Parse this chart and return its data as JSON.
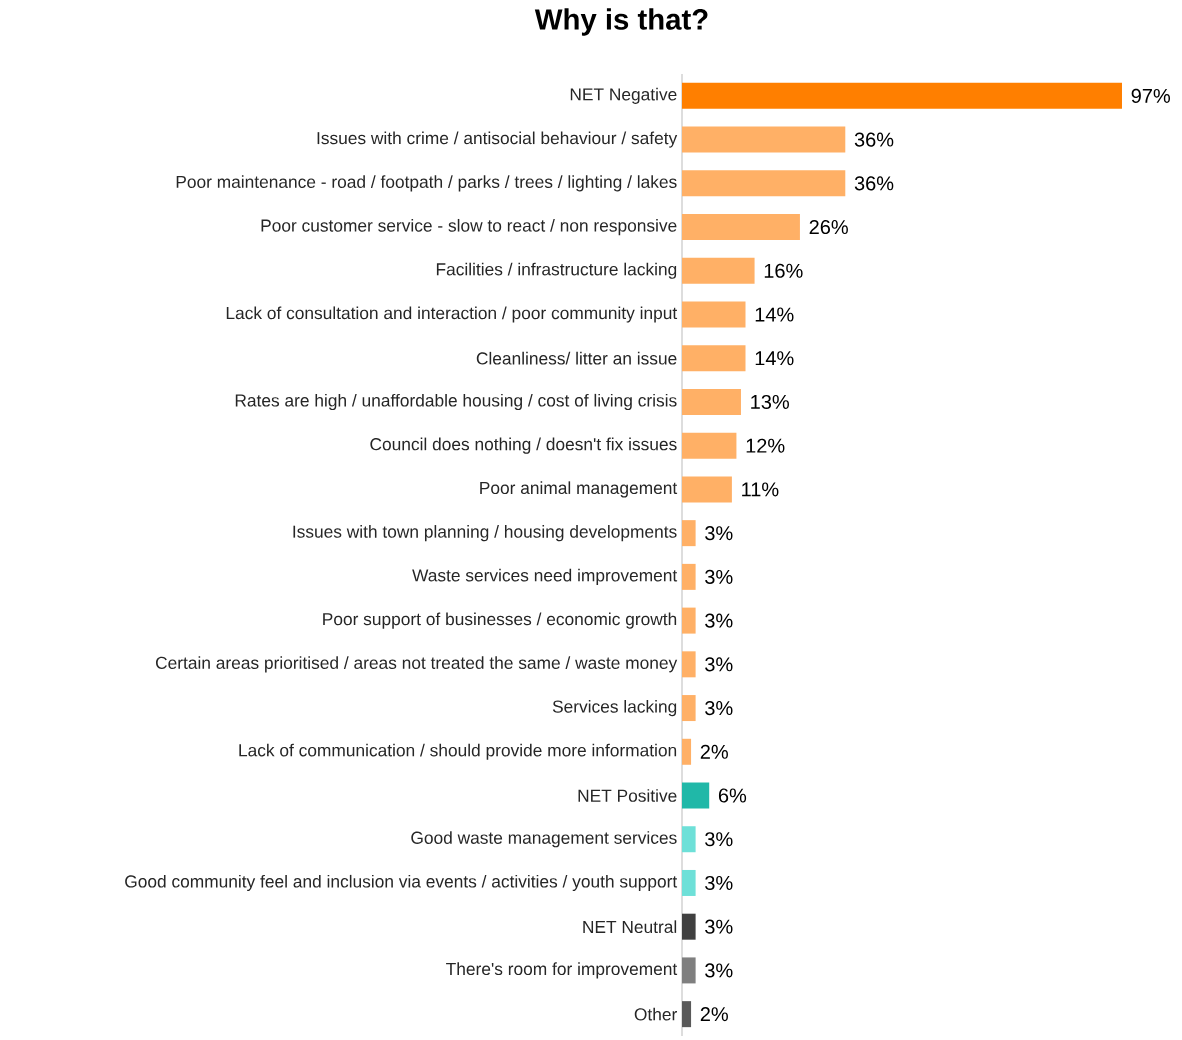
{
  "chart_data": {
    "type": "bar",
    "orientation": "horizontal",
    "title": "Why is that?",
    "categories": [
      "NET Negative",
      "Issues with crime / antisocial behaviour / safety",
      "Poor maintenance - road / footpath / parks / trees / lighting / lakes",
      "Poor customer service - slow to react / non responsive",
      "Facilities / infrastructure lacking",
      "Lack of consultation and interaction / poor community input",
      "Cleanliness/ litter an issue",
      "Rates are high / unaffordable housing / cost of living crisis",
      "Council does nothing / doesn't fix issues",
      "Poor animal management",
      "Issues with town planning / housing developments",
      "Waste services need improvement",
      "Poor support of businesses / economic growth",
      "Certain areas prioritised / areas not treated the same / waste money",
      "Services lacking",
      "Lack of communication / should provide more information",
      "NET Positive",
      "Good waste management services",
      "Good community feel and inclusion via events / activities / youth support",
      "NET Neutral",
      "There's room for improvement",
      "Other"
    ],
    "values": [
      97,
      36,
      36,
      26,
      16,
      14,
      14,
      13,
      12,
      11,
      3,
      3,
      3,
      3,
      3,
      2,
      6,
      3,
      3,
      3,
      3,
      2
    ],
    "value_labels": [
      "97%",
      "36%",
      "36%",
      "26%",
      "16%",
      "14%",
      "14%",
      "13%",
      "12%",
      "11%",
      "3%",
      "3%",
      "3%",
      "3%",
      "3%",
      "2%",
      "6%",
      "3%",
      "3%",
      "3%",
      "3%",
      "2%"
    ],
    "colors": [
      "#ff7f00",
      "#ffb066",
      "#ffb066",
      "#ffb066",
      "#ffb066",
      "#ffb066",
      "#ffb066",
      "#ffb066",
      "#ffb066",
      "#ffb066",
      "#ffb066",
      "#ffb066",
      "#ffb066",
      "#ffb066",
      "#ffb066",
      "#ffb066",
      "#20b8a8",
      "#6ee0d8",
      "#6ee0d8",
      "#404040",
      "#7f7f7f",
      "#595959"
    ]
  }
}
